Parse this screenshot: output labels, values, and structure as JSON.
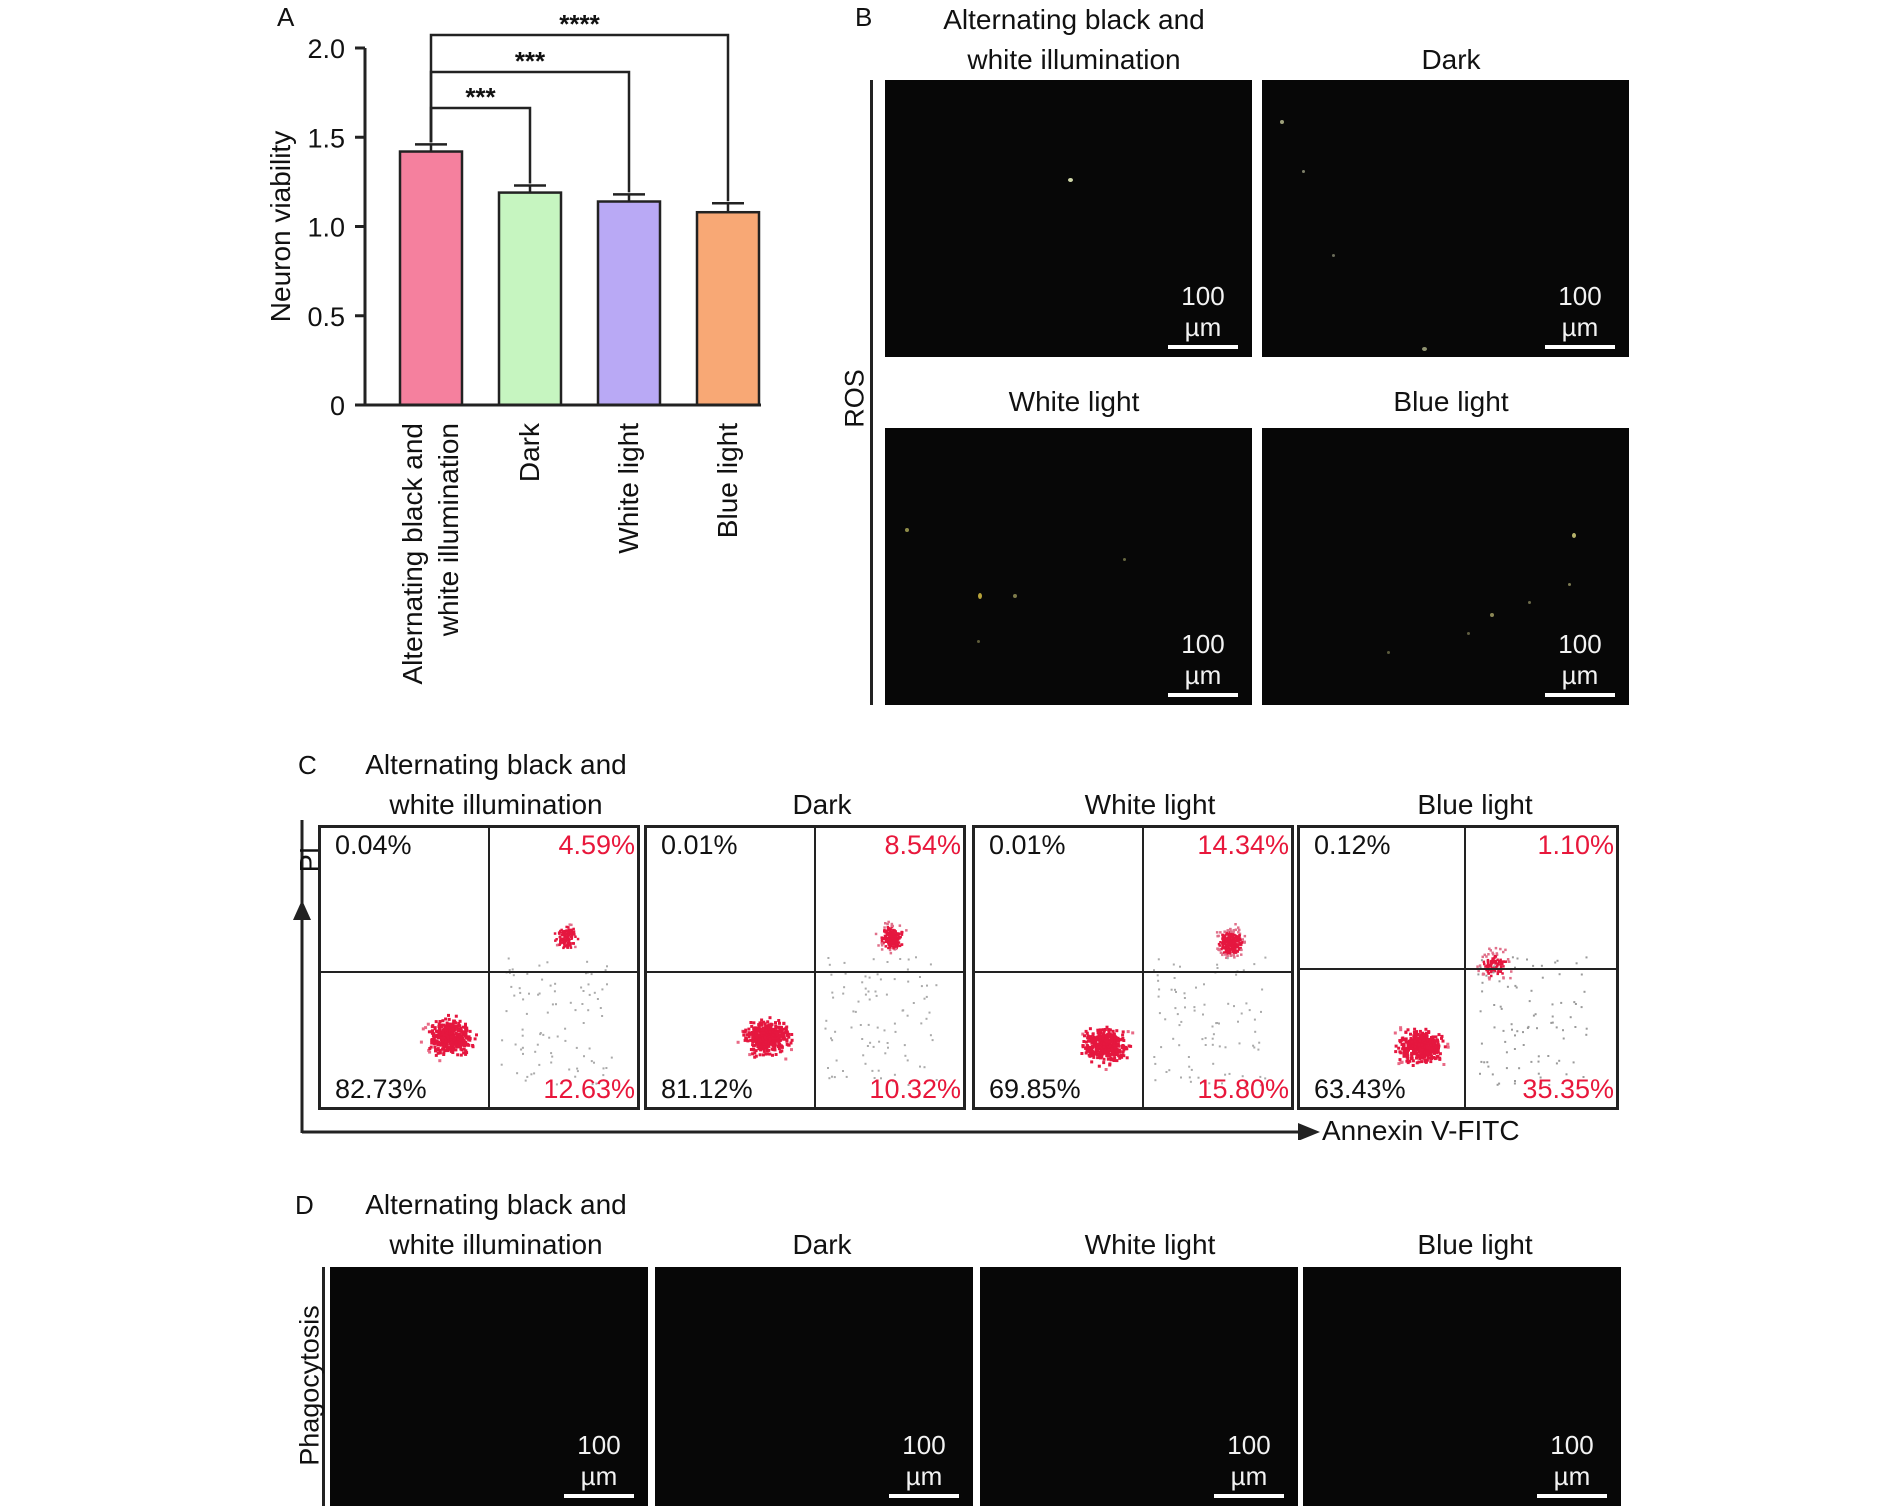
{
  "panels": {
    "a": "A",
    "b": "B",
    "c": "C",
    "d": "D"
  },
  "chart_data": {
    "type": "bar",
    "categories": [
      "Alternating black and white illumination",
      "Dark",
      "White light",
      "Blue light"
    ],
    "category_tick_lines": [
      [
        "Alternating black and",
        "white illumination"
      ],
      [
        "Dark"
      ],
      [
        "White light"
      ],
      [
        "Blue light"
      ]
    ],
    "values": [
      1.42,
      1.19,
      1.14,
      1.08
    ],
    "errors": [
      0.04,
      0.04,
      0.04,
      0.05
    ],
    "bar_colors": [
      "#f5809e",
      "#c6f5c0",
      "#b9a9f5",
      "#f8a875"
    ],
    "ylabel": "Neuron viability",
    "ylim": [
      0,
      2.0
    ],
    "yticks": [
      "0",
      "0.5",
      "1.0",
      "1.5",
      "2.0"
    ],
    "significance": [
      {
        "from": "Alternating black and white illumination",
        "to": "Dark",
        "label": "***"
      },
      {
        "from": "Alternating black and white illumination",
        "to": "White light",
        "label": "***"
      },
      {
        "from": "Alternating black and white illumination",
        "to": "Blue light",
        "label": "****"
      }
    ]
  },
  "ros": {
    "side_label": "ROS",
    "tiles": [
      {
        "title": "Alternating black and\nwhite illumination",
        "scale": "100 µm"
      },
      {
        "title": "Dark",
        "scale": "100 µm"
      },
      {
        "title": "White light",
        "scale": "100 µm"
      },
      {
        "title": "Blue light",
        "scale": "100 µm"
      }
    ]
  },
  "flow": {
    "y_axis": "PI",
    "x_axis": "Annexin V-FITC",
    "plots": [
      {
        "title": "Alternating black and\nwhite illumination",
        "ul": "0.04%",
        "ur": "4.59%",
        "ll": "82.73%",
        "lr": "12.63%"
      },
      {
        "title": "Dark",
        "ul": "0.01%",
        "ur": "8.54%",
        "ll": "81.12%",
        "lr": "10.32%"
      },
      {
        "title": "White light",
        "ul": "0.01%",
        "ur": "14.34%",
        "ll": "69.85%",
        "lr": "15.80%"
      },
      {
        "title": "Blue light",
        "ul": "0.12%",
        "ur": "1.10%",
        "ll": "63.43%",
        "lr": "35.35%"
      }
    ]
  },
  "phago": {
    "side_label": "Phagocytosis",
    "tiles": [
      {
        "title": "Alternating black and\nwhite illumination",
        "scale": "100 µm"
      },
      {
        "title": "Dark",
        "scale": "100 µm"
      },
      {
        "title": "White light",
        "scale": "100 µm"
      },
      {
        "title": "Blue light",
        "scale": "100 µm"
      }
    ]
  }
}
